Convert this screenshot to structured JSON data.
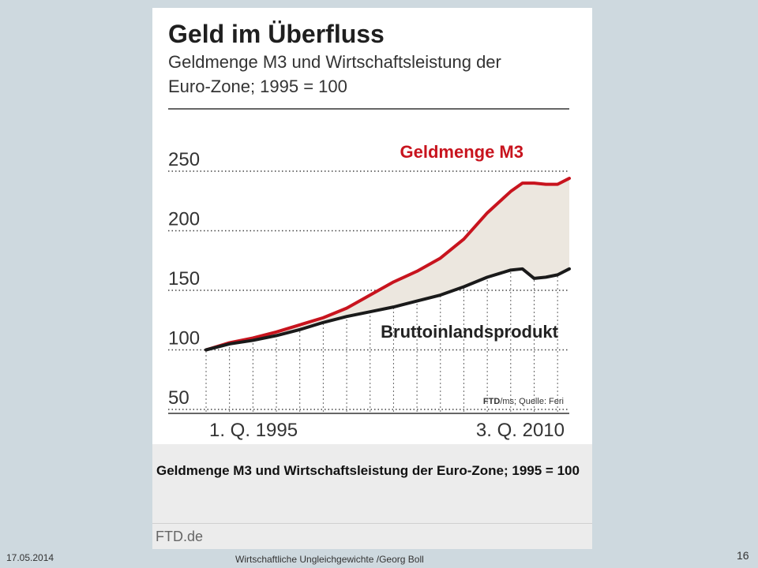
{
  "slide": {
    "date": "17.05.2014",
    "author": "Wirtschaftliche Ungleichgewichte /Georg Boll",
    "page_number": "16"
  },
  "figure": {
    "caption": "Geldmenge M3 und Wirtschaftsleistung der Euro-Zone; 1995 = 100",
    "source_site": "FTD.de"
  },
  "chart_data": {
    "type": "line",
    "title": "Geld im Überfluss",
    "subtitle_line1": "Geldmenge M3 und Wirtschaftsleistung der",
    "subtitle_line2": "Euro-Zone; 1995 = 100",
    "x_start_label": "1. Q. 1995",
    "x_end_label": "3. Q. 2010",
    "y_ticks": [
      "250",
      "200",
      "150",
      "100",
      "50"
    ],
    "ylim": [
      50,
      250
    ],
    "credit_bold": "FTD",
    "credit_rest": "/ms; Quelle: Feri",
    "area_fill": "between series",
    "x": [
      1995.0,
      1996.0,
      1997.0,
      1998.0,
      1999.0,
      2000.0,
      2001.0,
      2002.0,
      2003.0,
      2004.0,
      2005.0,
      2006.0,
      2007.0,
      2008.0,
      2008.5,
      2009.0,
      2009.5,
      2010.0,
      2010.5
    ],
    "series": [
      {
        "name": "Geldmenge M3",
        "color": "#c8141e",
        "values": [
          100,
          106,
          110,
          115,
          121,
          127,
          135,
          146,
          157,
          166,
          177,
          193,
          215,
          233,
          240,
          240,
          239,
          239,
          244
        ]
      },
      {
        "name": "Bruttoinlandsprodukt",
        "color": "#1a1a1a",
        "values": [
          100,
          105,
          108,
          112,
          117,
          123,
          128,
          132,
          136,
          141,
          146,
          153,
          161,
          167,
          168,
          160,
          161,
          163,
          168
        ]
      }
    ]
  }
}
